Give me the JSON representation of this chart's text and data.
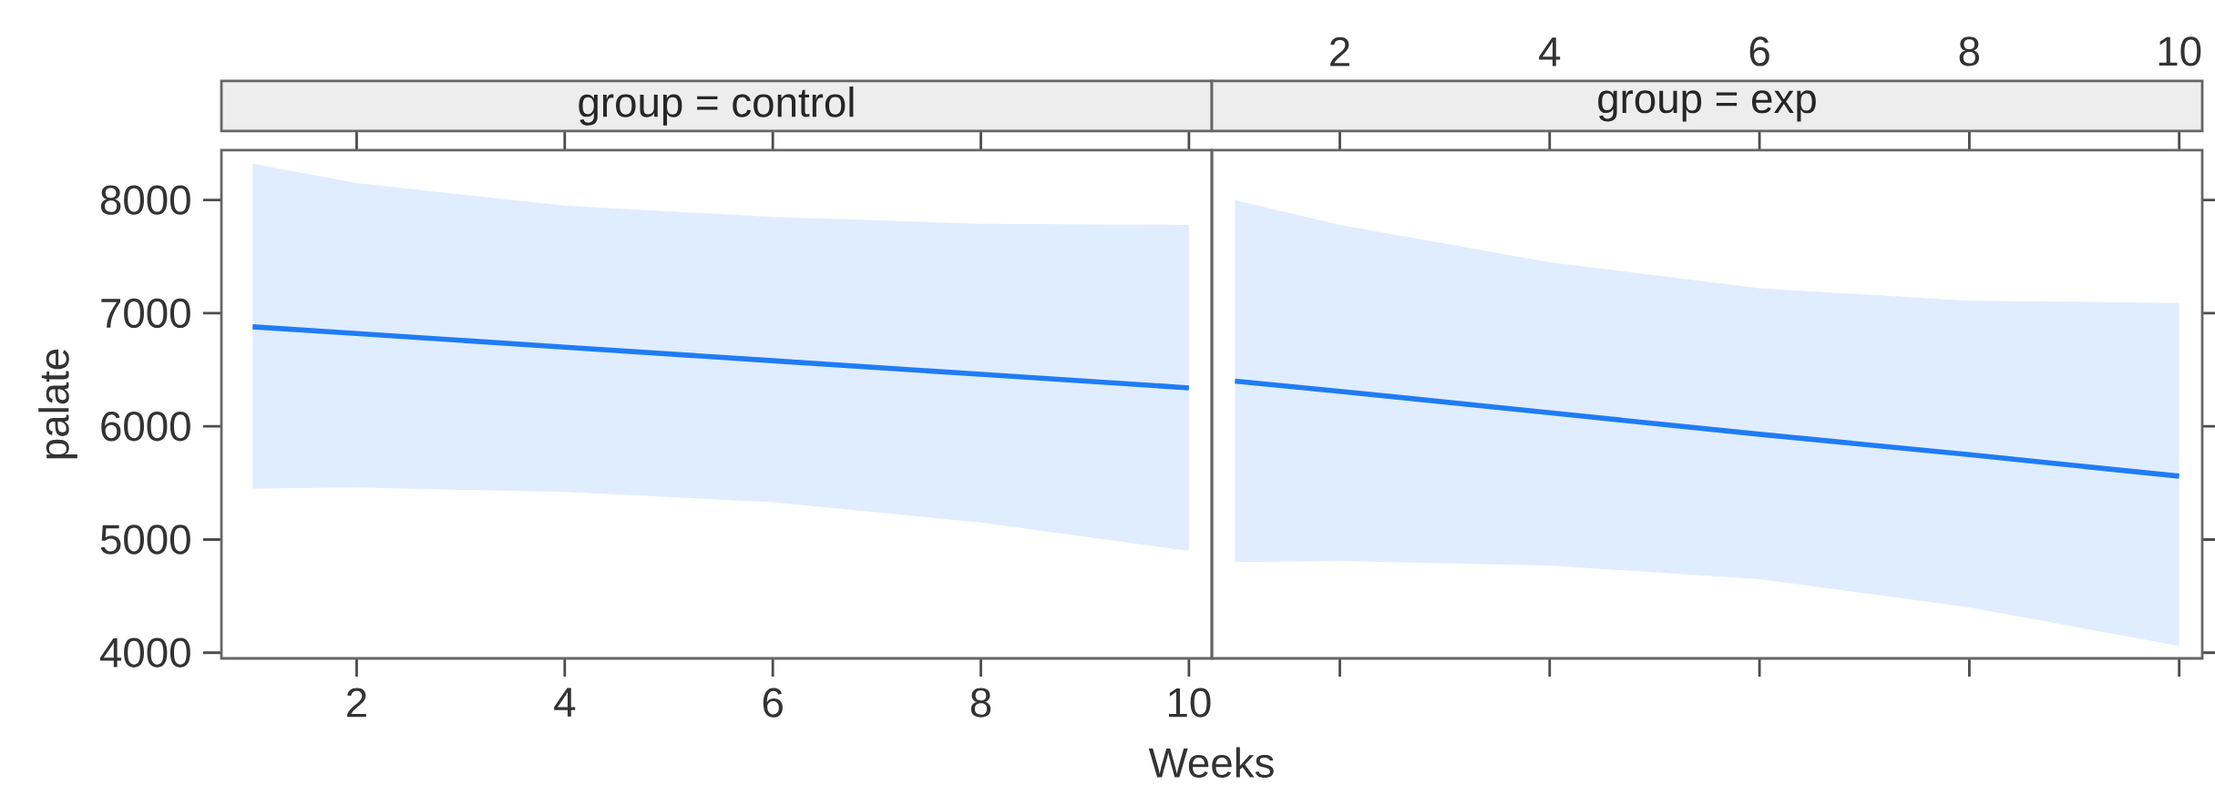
{
  "chart_data": [
    {
      "type": "line",
      "title": "group = control",
      "xlabel": "Weeks",
      "ylabel": "palate",
      "xlim": [
        0.7,
        10.22
      ],
      "xticks": [
        2,
        4,
        6,
        8,
        10
      ],
      "ylim": [
        3950,
        8440
      ],
      "yticks": [
        4000,
        5000,
        6000,
        7000,
        8000
      ],
      "tick_labels": "xy",
      "grid": false,
      "series": [
        {
          "color": "#1f7cf5",
          "x": [
            1,
            2,
            4,
            6,
            8,
            10
          ],
          "values": [
            6880,
            6820,
            6700,
            6580,
            6460,
            6340
          ],
          "lower": [
            5450,
            5460,
            5420,
            5330,
            5150,
            4900
          ],
          "upper": [
            8320,
            8150,
            7950,
            7850,
            7790,
            7780
          ]
        }
      ]
    },
    {
      "type": "line",
      "title": "group = exp",
      "xlim": [
        0.78,
        10.22
      ],
      "xticks": [
        2,
        4,
        6,
        8,
        10
      ],
      "ylim": [
        3950,
        8440
      ],
      "yticks": [
        {
          "value": 4000,
          "label": null
        },
        {
          "value": 5000,
          "label": null
        },
        {
          "value": 6000,
          "label": null
        },
        {
          "value": 7000,
          "label": null
        },
        {
          "value": 8000,
          "label": null
        }
      ],
      "tick_labels": "x",
      "grid": false,
      "series": [
        {
          "color": "#1f7cf5",
          "x": [
            1,
            2,
            4,
            6,
            8,
            10
          ],
          "values": [
            6400,
            6310,
            6120,
            5930,
            5750,
            5560
          ],
          "lower": [
            4800,
            4810,
            4770,
            4650,
            4400,
            4060
          ],
          "upper": [
            8000,
            7780,
            7450,
            7220,
            7110,
            7090
          ]
        }
      ]
    }
  ]
}
